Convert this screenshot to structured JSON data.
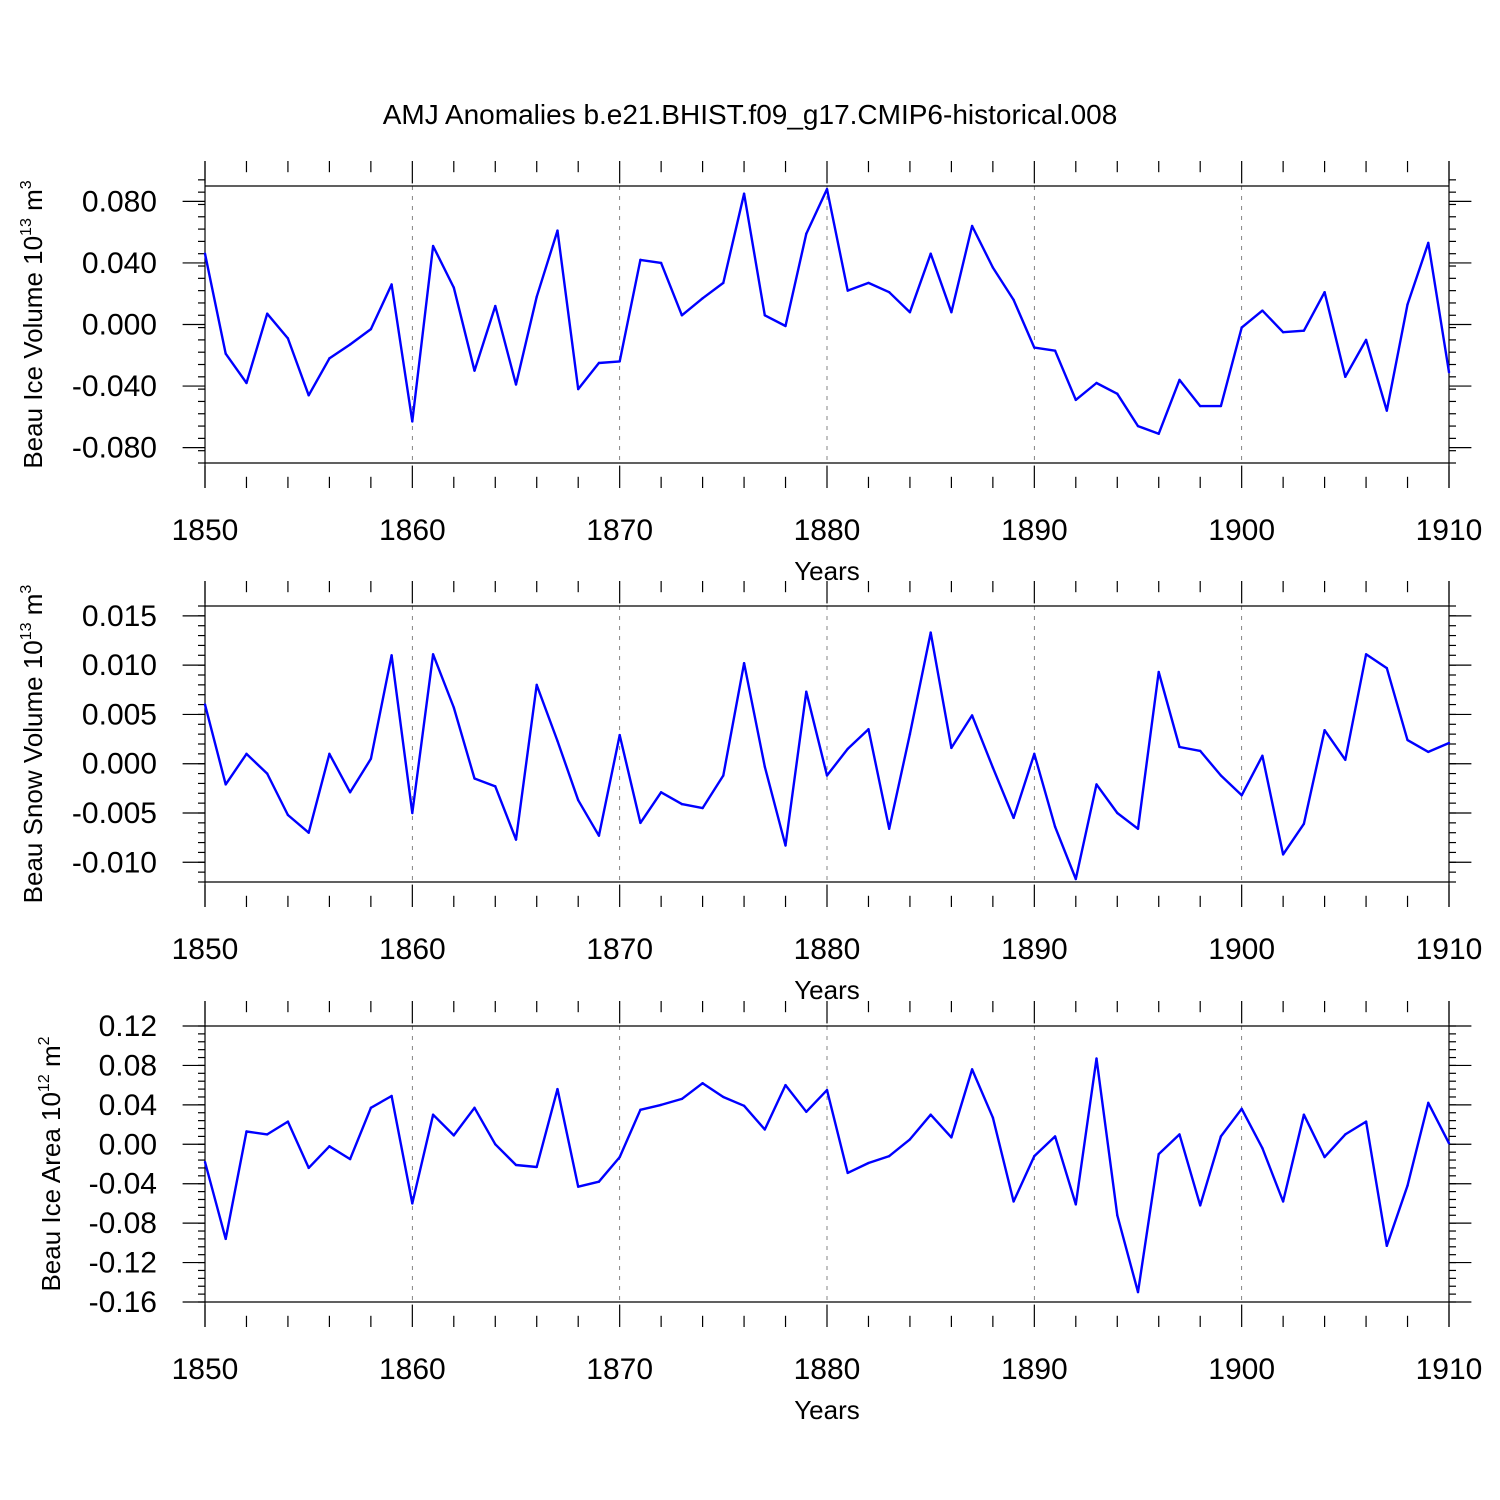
{
  "title": "AMJ Anomalies b.e21.BHIST.f09_g17.CMIP6-historical.008",
  "colors": {
    "line": "#0000ff",
    "axis": "#000000"
  },
  "chart_data": [
    {
      "type": "line",
      "ylabel": {
        "main": "Beau Ice Volume 10",
        "sup_exp": "13",
        "unit": " m",
        "sup_unit": "3"
      },
      "xlabel": "Years",
      "xlim": [
        1850,
        1910
      ],
      "ylim": [
        -0.09,
        0.09
      ],
      "yticks": [
        -0.08,
        -0.04,
        0.0,
        0.04,
        0.08
      ],
      "ytick_labels": [
        "-0.080",
        "-0.040",
        "0.000",
        "0.040",
        "0.080"
      ],
      "yminor_step": 0.008,
      "xticks": [
        1850,
        1860,
        1870,
        1880,
        1890,
        1900,
        1910
      ],
      "xtick_labels": [
        "1850",
        "1860",
        "1870",
        "1880",
        "1890",
        "1900",
        "1910"
      ],
      "grid_x": [
        1860,
        1870,
        1880,
        1890,
        1900
      ],
      "x_start": 1850,
      "values": [
        0.046,
        -0.019,
        -0.038,
        0.007,
        -0.009,
        -0.046,
        -0.022,
        -0.013,
        -0.003,
        0.026,
        -0.063,
        0.051,
        0.024,
        -0.03,
        0.012,
        -0.039,
        0.018,
        0.061,
        -0.042,
        -0.025,
        -0.024,
        0.042,
        0.04,
        0.006,
        0.017,
        0.027,
        0.085,
        0.006,
        -0.001,
        0.059,
        0.088,
        0.022,
        0.027,
        0.021,
        0.008,
        0.046,
        0.008,
        0.064,
        0.037,
        0.016,
        -0.015,
        -0.017,
        -0.049,
        -0.038,
        -0.045,
        -0.066,
        -0.071,
        -0.036,
        -0.053,
        -0.053,
        -0.002,
        0.009,
        -0.005,
        -0.004,
        0.021,
        -0.034,
        -0.01,
        -0.056,
        0.013,
        0.053,
        -0.031
      ]
    },
    {
      "type": "line",
      "ylabel": {
        "main": "Beau Snow Volume 10",
        "sup_exp": "13",
        "unit": " m",
        "sup_unit": "3"
      },
      "xlabel": "Years",
      "xlim": [
        1850,
        1910
      ],
      "ylim": [
        -0.012,
        0.016
      ],
      "yticks": [
        -0.01,
        -0.005,
        0.0,
        0.005,
        0.01,
        0.015
      ],
      "ytick_labels": [
        "-0.010",
        "-0.005",
        "0.000",
        "0.005",
        "0.010",
        "0.015"
      ],
      "yminor_step": 0.001,
      "xticks": [
        1850,
        1860,
        1870,
        1880,
        1890,
        1900,
        1910
      ],
      "xtick_labels": [
        "1850",
        "1860",
        "1870",
        "1880",
        "1890",
        "1900",
        "1910"
      ],
      "grid_x": [
        1860,
        1870,
        1880,
        1890,
        1900
      ],
      "x_start": 1850,
      "values": [
        0.006,
        -0.0021,
        0.001,
        -0.001,
        -0.0052,
        -0.007,
        0.001,
        -0.0029,
        0.0005,
        0.011,
        -0.005,
        0.0111,
        0.0057,
        -0.0015,
        -0.0023,
        -0.0077,
        0.008,
        0.0023,
        -0.0037,
        -0.0073,
        0.0029,
        -0.006,
        -0.0029,
        -0.0041,
        -0.0045,
        -0.0012,
        0.0102,
        -0.0003,
        -0.0083,
        0.0073,
        -0.0012,
        0.0015,
        0.0035,
        -0.0066,
        0.003,
        0.0133,
        0.0016,
        0.0049,
        -0.0004,
        -0.0055,
        0.001,
        -0.0064,
        -0.0117,
        -0.0021,
        -0.005,
        -0.0066,
        0.0093,
        0.0017,
        0.0013,
        -0.0012,
        -0.0032,
        0.0008,
        -0.0092,
        -0.0061,
        0.0034,
        0.0004,
        0.0111,
        0.0097,
        0.0024,
        0.0012,
        0.0021
      ]
    },
    {
      "type": "line",
      "ylabel": {
        "main": "Beau Ice Area 10",
        "sup_exp": "12",
        "unit": " m",
        "sup_unit": "2"
      },
      "xlabel": "Years",
      "xlim": [
        1850,
        1910
      ],
      "ylim": [
        -0.16,
        0.12
      ],
      "yticks": [
        -0.16,
        -0.12,
        -0.08,
        -0.04,
        0.0,
        0.04,
        0.08,
        0.12
      ],
      "ytick_labels": [
        "-0.16",
        "-0.12",
        "-0.08",
        "-0.04",
        "0.00",
        "0.04",
        "0.08",
        "0.12"
      ],
      "yminor_step": 0.008,
      "xticks": [
        1850,
        1860,
        1870,
        1880,
        1890,
        1900,
        1910
      ],
      "xtick_labels": [
        "1850",
        "1860",
        "1870",
        "1880",
        "1890",
        "1900",
        "1910"
      ],
      "grid_x": [
        1860,
        1870,
        1880,
        1890,
        1900
      ],
      "x_start": 1850,
      "values": [
        -0.018,
        -0.096,
        0.013,
        0.01,
        0.023,
        -0.024,
        -0.002,
        -0.015,
        0.037,
        0.049,
        -0.06,
        0.03,
        0.009,
        0.037,
        0.0,
        -0.021,
        -0.023,
        0.056,
        -0.043,
        -0.038,
        -0.013,
        0.035,
        0.04,
        0.046,
        0.062,
        0.048,
        0.039,
        0.015,
        0.06,
        0.033,
        0.055,
        -0.029,
        -0.019,
        -0.012,
        0.005,
        0.03,
        0.007,
        0.076,
        0.027,
        -0.058,
        -0.012,
        0.008,
        -0.061,
        0.087,
        -0.072,
        -0.15,
        -0.01,
        0.01,
        -0.062,
        0.008,
        0.036,
        -0.004,
        -0.058,
        0.03,
        -0.013,
        0.01,
        0.023,
        -0.103,
        -0.042,
        0.042,
        0.001
      ]
    }
  ]
}
